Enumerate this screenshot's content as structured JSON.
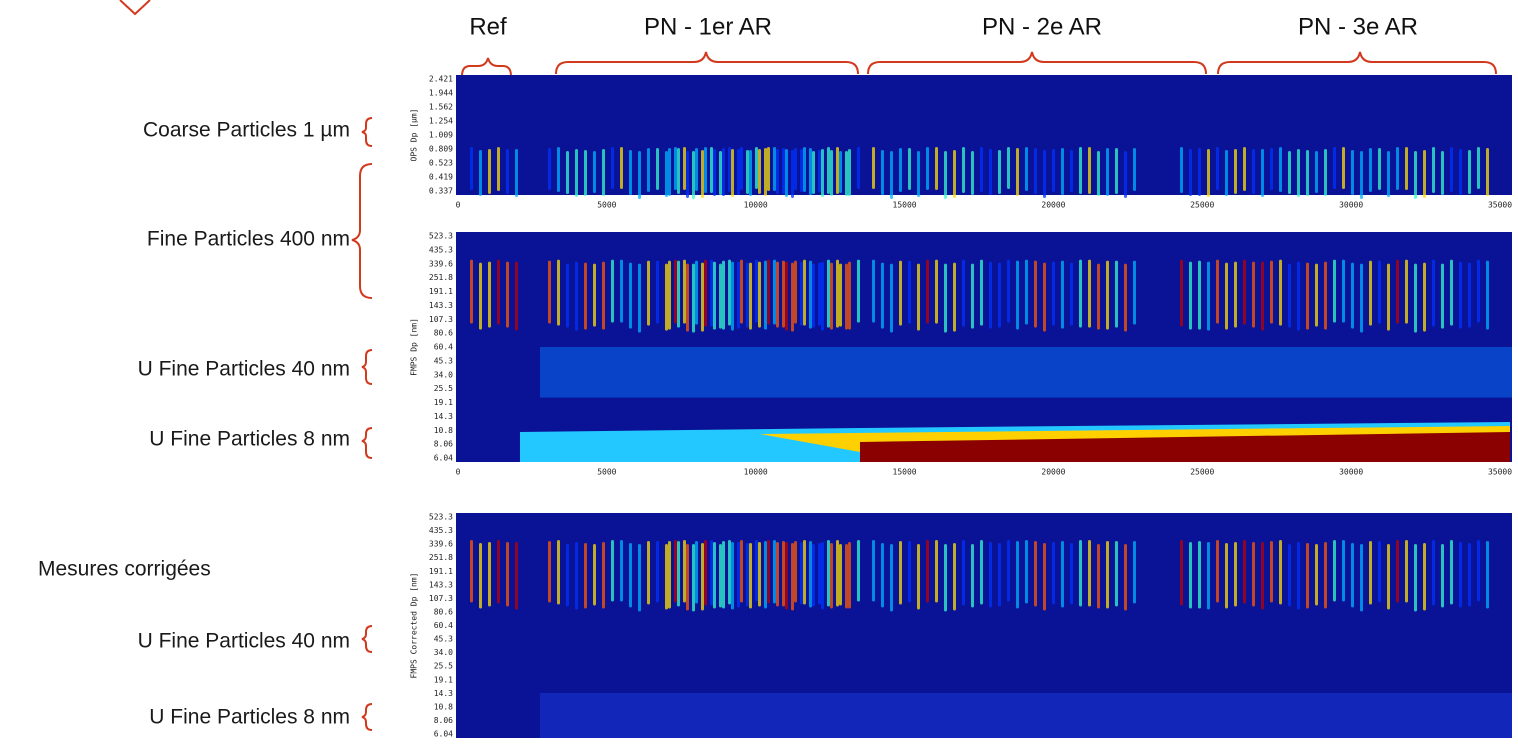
{
  "header": {
    "groups": [
      "Ref",
      "PN - 1er AR",
      "PN - 2e AR",
      "PN - 3e AR"
    ]
  },
  "labels": [
    "Coarse Particles 1 µm",
    "Fine Particles 400 nm",
    "U Fine Particles 40 nm",
    "U Fine Particles 8 nm",
    "Mesures corrigées",
    "U Fine Particles 40 nm",
    "U Fine Particles 8 nm"
  ],
  "panels": [
    {
      "ylabel": "OPS Dp [µm]",
      "yticks": [
        "2.421",
        "1.944",
        "1.562",
        "1.254",
        "1.009",
        "0.809",
        "0.523",
        "0.419",
        "0.337"
      ],
      "xticks": [
        "0",
        "5000",
        "10000",
        "15000",
        "20000",
        "25000",
        "30000",
        "35000"
      ]
    },
    {
      "ylabel": "FMPS Dp [nm]",
      "yticks": [
        "523.3",
        "435.3",
        "339.6",
        "251.8",
        "191.1",
        "143.3",
        "107.3",
        "80.6",
        "60.4",
        "45.3",
        "34.0",
        "25.5",
        "19.1",
        "14.3",
        "10.8",
        "8.06",
        "6.04"
      ],
      "xticks": [
        "0",
        "5000",
        "10000",
        "15000",
        "20000",
        "25000",
        "30000",
        "35000"
      ]
    },
    {
      "ylabel": "FMPS Corrected Dp [nm]",
      "yticks": [
        "523.3",
        "435.3",
        "339.6",
        "251.8",
        "191.1",
        "143.3",
        "107.3",
        "80.6",
        "60.4",
        "45.3",
        "34.0",
        "25.5",
        "19.1",
        "14.3",
        "10.8",
        "8.06",
        "6.04"
      ]
    }
  ]
}
